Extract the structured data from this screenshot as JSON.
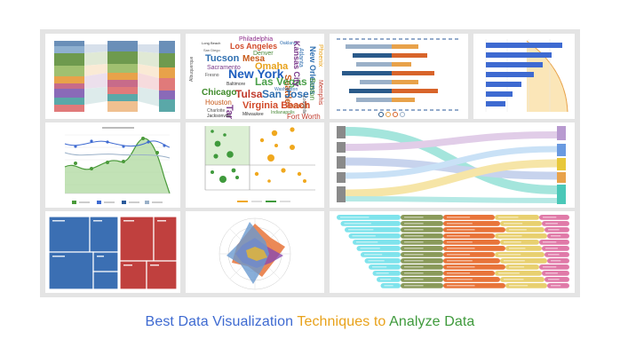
{
  "caption": {
    "part1": "Best Data Visualization ",
    "part2": "Techniques to ",
    "part3": "Analyze Data",
    "colors": {
      "part1": "#3e6ad1",
      "part2": "#e8a21b",
      "part3": "#3f9a3c"
    }
  },
  "word_cloud": {
    "words": [
      {
        "text": "Philadelphia",
        "color": "#8b2a8a"
      },
      {
        "text": "Long Beach",
        "color": "#333333"
      },
      {
        "text": "Los Angeles",
        "color": "#d24a2a"
      },
      {
        "text": "Oakland",
        "color": "#2f6fb0"
      },
      {
        "text": "San Diego",
        "color": "#555555"
      },
      {
        "text": "Denver",
        "color": "#4a8a3a"
      },
      {
        "text": "Tucson",
        "color": "#2f6fb0"
      },
      {
        "text": "Mesa",
        "color": "#c75a1a"
      },
      {
        "text": "Sacramento",
        "color": "#7a3a8a"
      },
      {
        "text": "Omaha",
        "color": "#e8a21b"
      },
      {
        "text": "Fresno",
        "color": "#555555"
      },
      {
        "text": "New York",
        "color": "#1f5fbf"
      },
      {
        "text": "Seattle",
        "color": "#c75a1a"
      },
      {
        "text": "Albuquerque",
        "color": "#555555"
      },
      {
        "text": "Atlanta",
        "color": "#2f6fb0"
      },
      {
        "text": "Las Vegas",
        "color": "#4aa04a"
      },
      {
        "text": "Chicago",
        "color": "#3e8a2a"
      },
      {
        "text": "Baltimore",
        "color": "#333333"
      },
      {
        "text": "Tulsa",
        "color": "#c0392b"
      },
      {
        "text": "San Jose",
        "color": "#2f6fb0"
      },
      {
        "text": "Houston",
        "color": "#c75a1a"
      },
      {
        "text": "Tampa",
        "color": "#7a3a8a"
      },
      {
        "text": "Charlotte",
        "color": "#555555"
      },
      {
        "text": "Virginia Beach",
        "color": "#d24a2a"
      },
      {
        "text": "Detroit",
        "color": "#c75a1a"
      },
      {
        "text": "Jacksonville",
        "color": "#333333"
      },
      {
        "text": "Milwaukee",
        "color": "#333333"
      },
      {
        "text": "Indianapolis",
        "color": "#4a8a3a"
      },
      {
        "text": "Fort Worth",
        "color": "#c0392b"
      },
      {
        "text": "Kansas City",
        "color": "#7a3a8a"
      },
      {
        "text": "New Orleans",
        "color": "#2f6fb0"
      },
      {
        "text": "Phoenix",
        "color": "#e8a21b"
      },
      {
        "text": "Boston",
        "color": "#3e8a2a"
      },
      {
        "text": "Memphis",
        "color": "#c0392b"
      },
      {
        "text": "Louisville",
        "color": "#555555"
      },
      {
        "text": "Washington",
        "color": "#2f6fb0"
      }
    ]
  }
}
